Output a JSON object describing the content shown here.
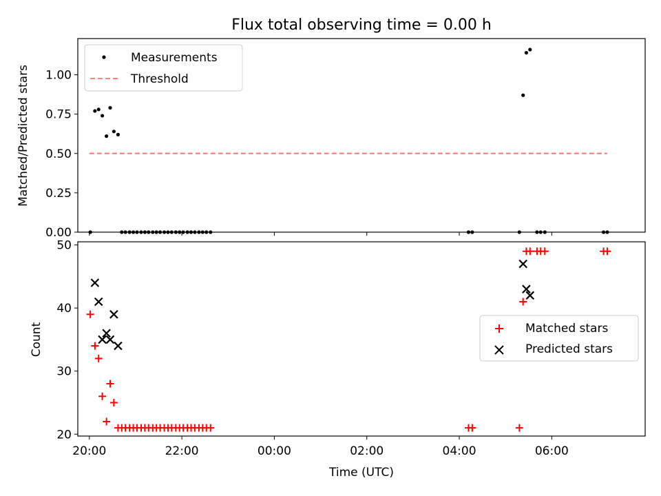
{
  "chart_data": [
    {
      "type": "scatter",
      "title": "Flux total observing time = 0.00 h",
      "ylabel": "Matched/Predicted stars",
      "xlabel": "",
      "x_unit": "hours since 20:00 UTC",
      "xlim": [
        -0.25,
        12.02
      ],
      "ylim": [
        0,
        1.23
      ],
      "yticks": [
        0.0,
        0.25,
        0.5,
        0.75,
        1.0
      ],
      "ytick_labels": [
        "0.00",
        "0.25",
        "0.50",
        "0.75",
        "1.00"
      ],
      "legend_position": "top-left",
      "legend": [
        "Measurements",
        "Threshold"
      ],
      "series": [
        {
          "name": "Measurements",
          "marker": "dot",
          "color": "#000000",
          "points": [
            [
              0.02,
              0.0
            ],
            [
              0.12,
              0.77
            ],
            [
              0.2,
              0.78
            ],
            [
              0.28,
              0.74
            ],
            [
              0.37,
              0.61
            ],
            [
              0.45,
              0.79
            ],
            [
              0.53,
              0.64
            ],
            [
              0.62,
              0.62
            ],
            [
              0.7,
              0.0
            ],
            [
              0.78,
              0.0
            ],
            [
              0.87,
              0.0
            ],
            [
              0.95,
              0.0
            ],
            [
              1.03,
              0.0
            ],
            [
              1.12,
              0.0
            ],
            [
              1.2,
              0.0
            ],
            [
              1.28,
              0.0
            ],
            [
              1.37,
              0.0
            ],
            [
              1.45,
              0.0
            ],
            [
              1.53,
              0.0
            ],
            [
              1.62,
              0.0
            ],
            [
              1.7,
              0.0
            ],
            [
              1.78,
              0.0
            ],
            [
              1.87,
              0.0
            ],
            [
              1.95,
              0.0
            ],
            [
              2.03,
              0.0
            ],
            [
              2.12,
              0.0
            ],
            [
              2.2,
              0.0
            ],
            [
              2.28,
              0.0
            ],
            [
              2.37,
              0.0
            ],
            [
              2.45,
              0.0
            ],
            [
              2.53,
              0.0
            ],
            [
              2.62,
              0.0
            ],
            [
              8.2,
              0.0
            ],
            [
              8.28,
              0.0
            ],
            [
              9.3,
              0.0
            ],
            [
              9.38,
              0.87
            ],
            [
              9.45,
              1.14
            ],
            [
              9.53,
              1.16
            ],
            [
              9.68,
              0.0
            ],
            [
              9.76,
              0.0
            ],
            [
              9.85,
              0.0
            ],
            [
              11.12,
              0.0
            ],
            [
              11.2,
              0.0
            ]
          ]
        },
        {
          "name": "Threshold",
          "marker": "dashed-line",
          "color": "#ff7f7f",
          "x_range": [
            0.0,
            11.2
          ],
          "value": 0.5
        }
      ]
    },
    {
      "type": "scatter",
      "title": "",
      "ylabel": "Count",
      "xlabel": "Time (UTC)",
      "x_unit": "hours since 20:00 UTC",
      "xlim": [
        -0.25,
        12.02
      ],
      "ylim": [
        19.7,
        50.5
      ],
      "yticks": [
        20,
        30,
        40,
        50
      ],
      "ytick_labels": [
        "20",
        "30",
        "40",
        "50"
      ],
      "xticks": [
        0,
        2,
        4,
        6,
        8,
        10
      ],
      "xtick_labels": [
        "20:00",
        "22:00",
        "00:00",
        "02:00",
        "04:00",
        "06:00"
      ],
      "legend_position": "center-right",
      "legend": [
        "Matched stars",
        "Predicted stars"
      ],
      "series": [
        {
          "name": "Matched stars",
          "marker": "plus",
          "color": "#ff0000",
          "points": [
            [
              0.02,
              39
            ],
            [
              0.12,
              34
            ],
            [
              0.2,
              32
            ],
            [
              0.28,
              26
            ],
            [
              0.37,
              22
            ],
            [
              0.45,
              28
            ],
            [
              0.53,
              25
            ],
            [
              0.62,
              21
            ],
            [
              0.7,
              21
            ],
            [
              0.78,
              21
            ],
            [
              0.87,
              21
            ],
            [
              0.95,
              21
            ],
            [
              1.03,
              21
            ],
            [
              1.12,
              21
            ],
            [
              1.2,
              21
            ],
            [
              1.28,
              21
            ],
            [
              1.37,
              21
            ],
            [
              1.45,
              21
            ],
            [
              1.53,
              21
            ],
            [
              1.62,
              21
            ],
            [
              1.7,
              21
            ],
            [
              1.78,
              21
            ],
            [
              1.87,
              21
            ],
            [
              1.95,
              21
            ],
            [
              2.03,
              21
            ],
            [
              2.12,
              21
            ],
            [
              2.2,
              21
            ],
            [
              2.28,
              21
            ],
            [
              2.37,
              21
            ],
            [
              2.45,
              21
            ],
            [
              2.53,
              21
            ],
            [
              2.62,
              21
            ],
            [
              8.2,
              21
            ],
            [
              8.28,
              21
            ],
            [
              9.3,
              21
            ],
            [
              9.38,
              41
            ],
            [
              9.45,
              49
            ],
            [
              9.53,
              49
            ],
            [
              9.68,
              49
            ],
            [
              9.76,
              49
            ],
            [
              9.85,
              49
            ],
            [
              11.12,
              49
            ],
            [
              11.2,
              49
            ]
          ]
        },
        {
          "name": "Predicted stars",
          "marker": "x",
          "color": "#000000",
          "points": [
            [
              0.12,
              44
            ],
            [
              0.2,
              41
            ],
            [
              0.28,
              35
            ],
            [
              0.37,
              36
            ],
            [
              0.45,
              35
            ],
            [
              0.53,
              39
            ],
            [
              0.62,
              34
            ],
            [
              9.38,
              47
            ],
            [
              9.45,
              43
            ],
            [
              9.53,
              42
            ]
          ]
        }
      ]
    }
  ]
}
